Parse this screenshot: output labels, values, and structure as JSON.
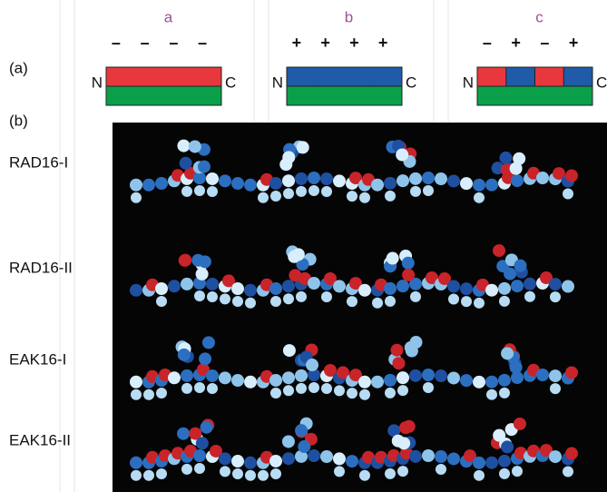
{
  "panel_a": {
    "label": "(a)",
    "schemes": [
      {
        "letter": "a",
        "charges": [
          "–",
          "–",
          "–",
          "–"
        ],
        "n_end": "N",
        "c_end": "C"
      },
      {
        "letter": "b",
        "charges": [
          "+",
          "+",
          "+",
          "+"
        ],
        "n_end": "N",
        "c_end": "C"
      },
      {
        "letter": "c",
        "charges": [
          "–",
          "+",
          "–",
          "+"
        ],
        "n_end": "N",
        "c_end": "C"
      }
    ]
  },
  "panel_b": {
    "label": "(b)",
    "rows": [
      "RAD16-I",
      "RAD16-II",
      "EAK16-I",
      "EAK16-II"
    ]
  }
}
